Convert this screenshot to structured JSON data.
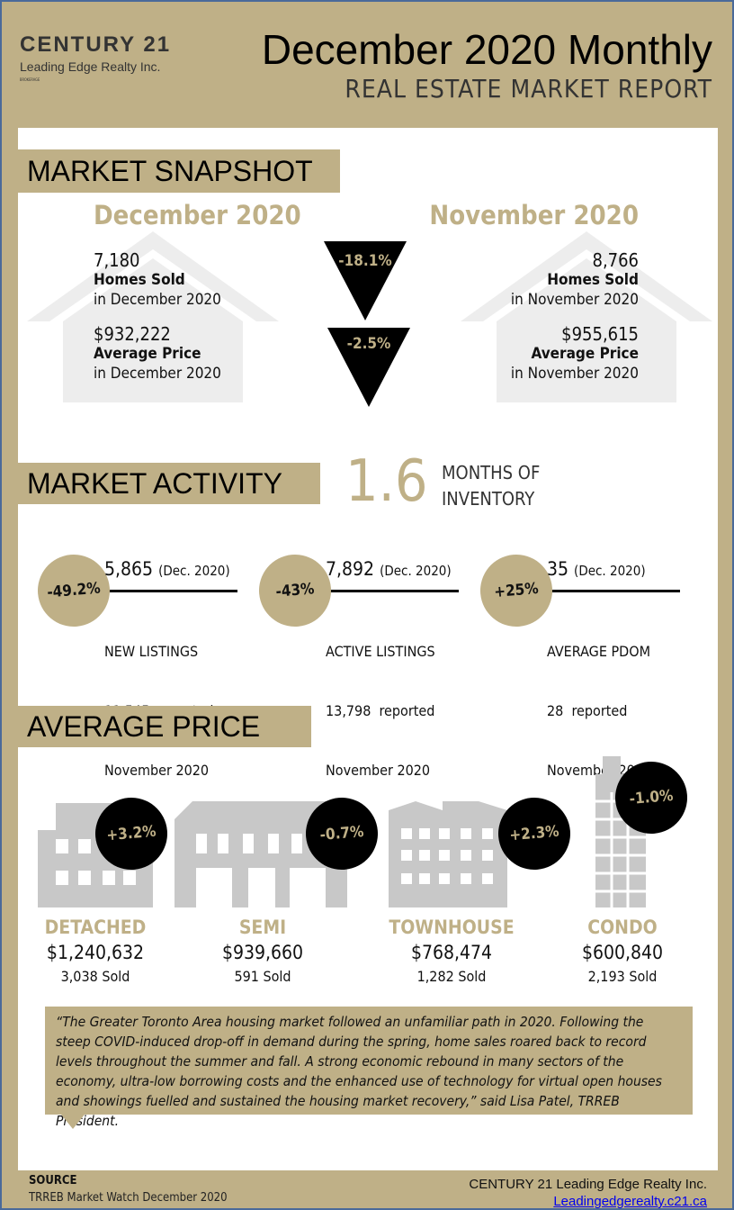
{
  "header": {
    "logo_line1": "CENTURY 21",
    "logo_line2": "Leading Edge Realty Inc.",
    "logo_line3": "BROKERAGE",
    "title": "December 2020 Monthly",
    "subtitle": "REAL ESTATE MARKET REPORT"
  },
  "snapshot": {
    "heading": "MARKET SNAPSHOT",
    "current": {
      "period": "December 2020",
      "homes_sold": "7,180",
      "homes_sold_label": "Homes Sold",
      "homes_sold_sub": "in December 2020",
      "avg_price": "$932,222",
      "avg_price_label": "Average Price",
      "avg_price_sub": "in December 2020"
    },
    "previous": {
      "period": "November 2020",
      "homes_sold": "8,766",
      "homes_sold_label": "Homes Sold",
      "homes_sold_sub": "in November 2020",
      "avg_price": "$955,615",
      "avg_price_label": "Average Price",
      "avg_price_sub": "in November 2020"
    },
    "change_sold": "-18.1%",
    "change_price": "-2.5%"
  },
  "activity": {
    "heading": "MARKET ACTIVITY",
    "moi_value": "1.6",
    "moi_label1": "MONTHS OF",
    "moi_label2": "INVENTORY",
    "items": [
      {
        "change": "-49.2%",
        "value": "5,865",
        "period": "(Dec. 2020)",
        "label": "NEW LISTINGS",
        "prev": "11,545  reported",
        "prev_period": "November 2020",
        "style": "gold"
      },
      {
        "change": "-43%",
        "value": "7,892",
        "period": "(Dec. 2020)",
        "label": "ACTIVE LISTINGS",
        "prev": "13,798  reported",
        "prev_period": "November 2020",
        "style": "gold"
      },
      {
        "change": "+25%",
        "value": "35",
        "period": "(Dec. 2020)",
        "label": "AVERAGE PDOM",
        "prev": "28  reported",
        "prev_period": "November 2020",
        "style": "gold"
      }
    ]
  },
  "avg_price": {
    "heading": "AVERAGE PRICE",
    "types": [
      {
        "name": "DETACHED",
        "price": "$1,240,632",
        "sold": "3,038 Sold",
        "change": "+3.2%"
      },
      {
        "name": "SEMI",
        "price": "$939,660",
        "sold": "591 Sold",
        "change": "-0.7%"
      },
      {
        "name": "TOWNHOUSE",
        "price": "$768,474",
        "sold": "1,282 Sold",
        "change": "+2.3%"
      },
      {
        "name": "CONDO",
        "price": "$600,840",
        "sold": "2,193 Sold",
        "change": "-1.0%"
      }
    ]
  },
  "quote": "“The Greater Toronto Area housing market followed an unfamiliar path in 2020. Following the steep COVID-induced drop-off in demand during the spring, home sales roared back to record levels throughout the summer and fall. A strong economic rebound in many sectors of the economy, ultra-low borrowing costs and the enhanced use of technology for virtual open houses and showings fuelled and sustained the housing market recovery,” said Lisa Patel, TRREB President.",
  "footer": {
    "source_label": "SOURCE",
    "source": "TRREB Market Watch December 2020",
    "company": "CENTURY 21 Leading Edge Realty Inc.",
    "website": "Leadingedgerealty.c21.ca"
  },
  "colors": {
    "gold": "#bfb087",
    "black": "#000000"
  }
}
